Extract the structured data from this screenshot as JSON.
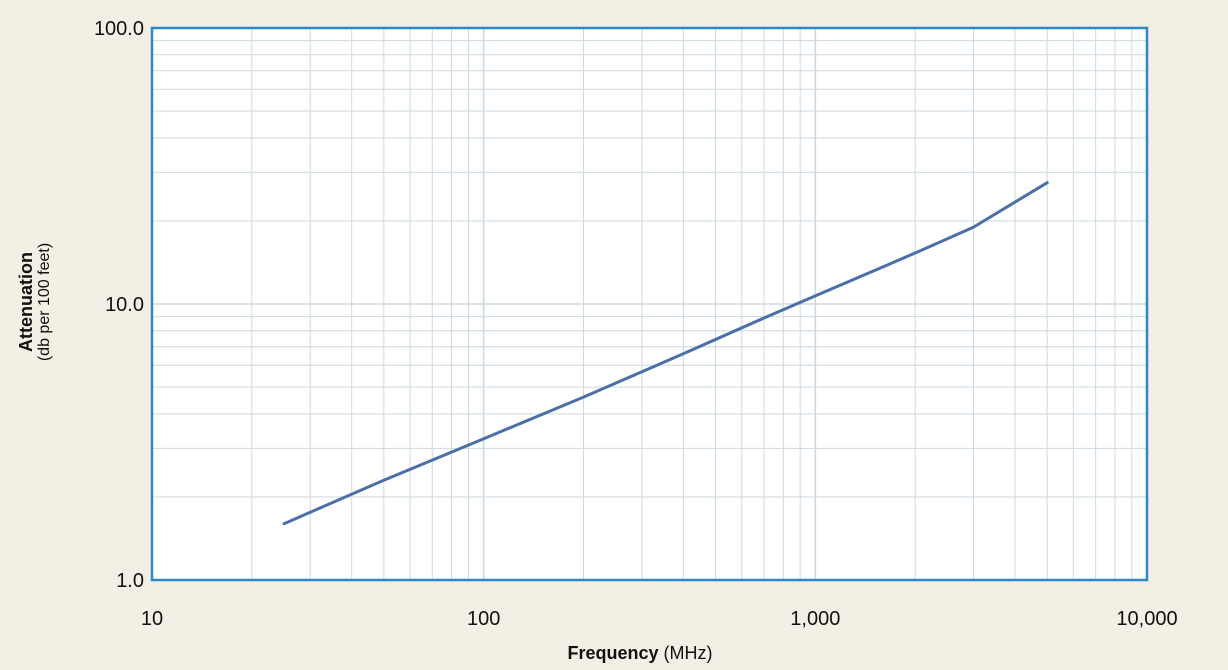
{
  "chart_data": {
    "type": "line",
    "title": "",
    "xlabel": "Frequency",
    "xlabel_unit": "(MHz)",
    "ylabel": "Attenuation",
    "ylabel_unit": "(db per 100 feet)",
    "x_scale": "log",
    "y_scale": "log",
    "xlim": [
      10,
      10000
    ],
    "ylim": [
      1,
      100
    ],
    "x_ticks": [
      10,
      100,
      1000,
      10000
    ],
    "x_tick_labels": [
      "10",
      "100",
      "1,000",
      "10,000"
    ],
    "y_ticks": [
      1,
      10,
      100
    ],
    "y_tick_labels": [
      "1.0",
      "10.0",
      "100.0"
    ],
    "grid": true,
    "legend": "none",
    "series": [
      {
        "x": [
          25,
          50,
          100,
          200,
          400,
          700,
          1000,
          2000,
          3000,
          5000
        ],
        "y": [
          1.6,
          2.3,
          3.25,
          4.6,
          6.6,
          8.9,
          10.7,
          15.3,
          19.0,
          27.5
        ]
      }
    ]
  },
  "colors": {
    "background": "#f3efe5",
    "plot_area": "#ffffff",
    "frame": "#2a8ac8",
    "grid": "#cdd9e1",
    "line": "#4b6fa6"
  }
}
